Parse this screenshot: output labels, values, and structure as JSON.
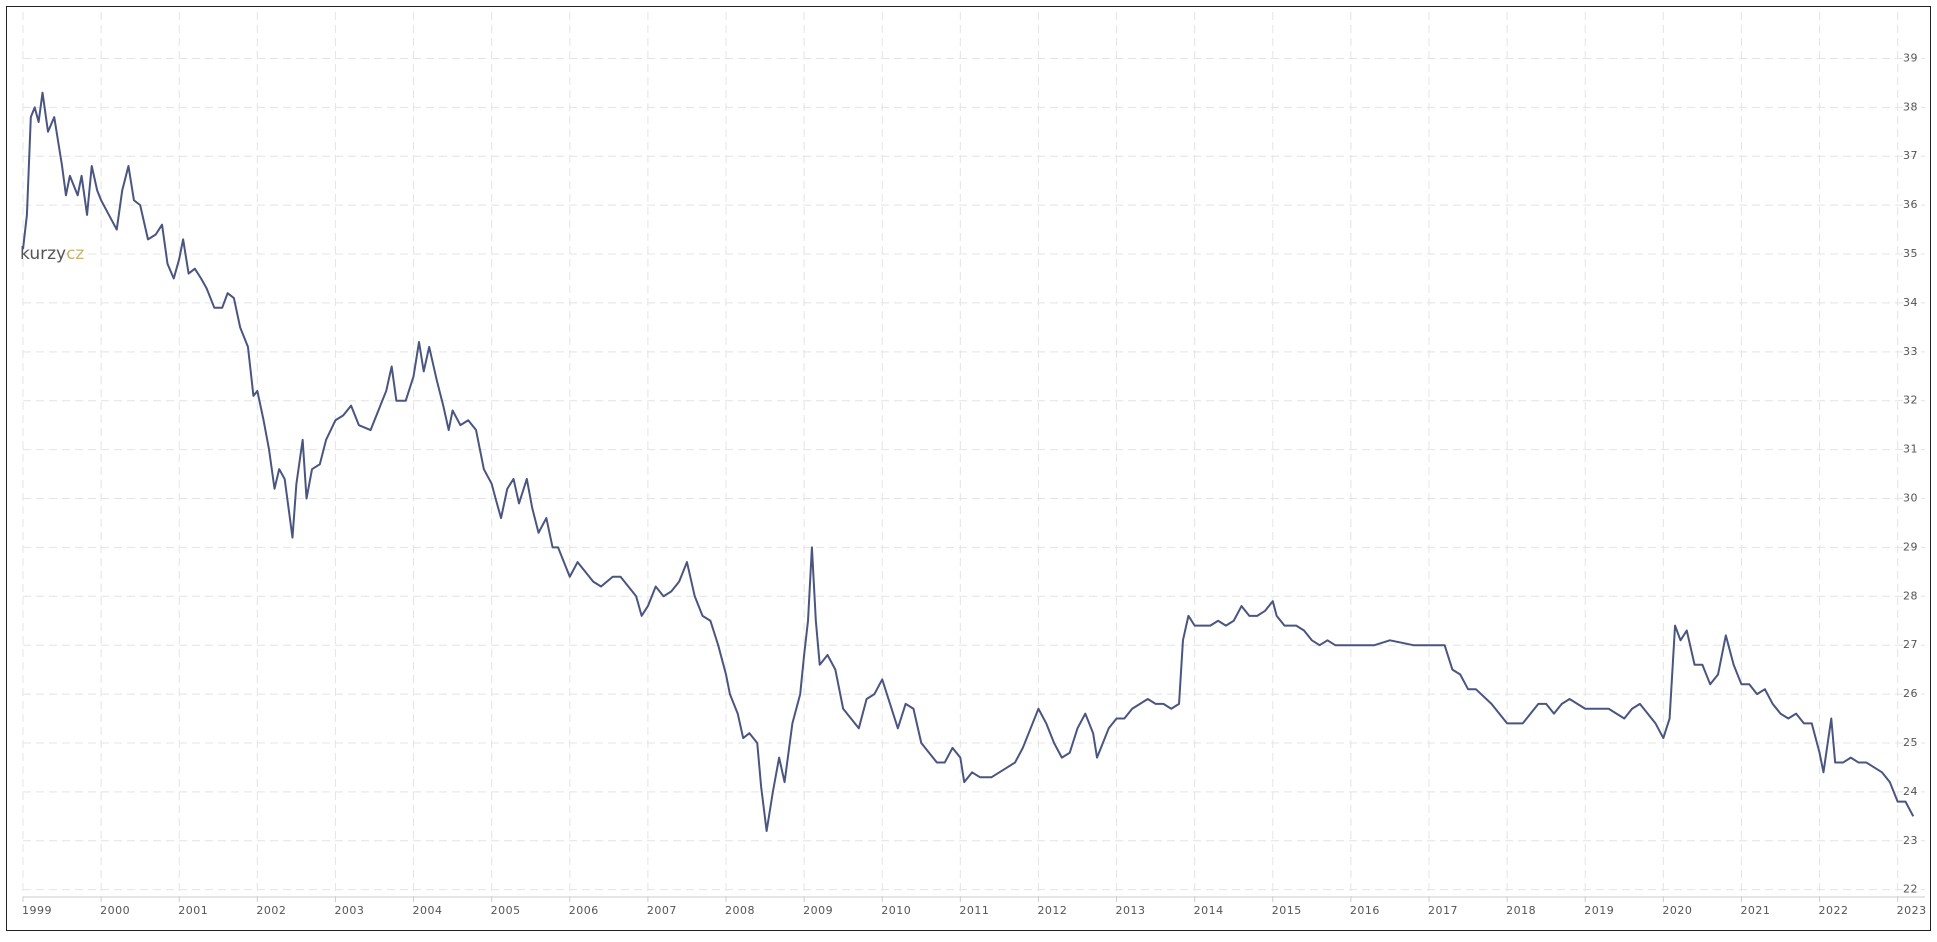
{
  "chart_data": {
    "type": "line",
    "color": "#4a5580",
    "grid": true,
    "watermark": "kurzy",
    "watermark_accent": "cz",
    "xlim": [
      1999,
      2023.35
    ],
    "ylim": [
      21.85,
      39.95
    ],
    "xticks": [
      1999,
      2000,
      2001,
      2002,
      2003,
      2004,
      2005,
      2006,
      2007,
      2008,
      2009,
      2010,
      2011,
      2012,
      2013,
      2014,
      2015,
      2016,
      2017,
      2018,
      2019,
      2020,
      2021,
      2022,
      2023
    ],
    "yticks": [
      22,
      23,
      24,
      25,
      26,
      27,
      28,
      29,
      30,
      31,
      32,
      33,
      34,
      35,
      36,
      37,
      38,
      39
    ],
    "x": [
      1999.0,
      1999.05,
      1999.1,
      1999.15,
      1999.2,
      1999.25,
      1999.32,
      1999.4,
      1999.5,
      1999.55,
      1999.6,
      1999.7,
      1999.75,
      1999.82,
      1999.88,
      1999.95,
      2000.0,
      2000.1,
      2000.2,
      2000.27,
      2000.35,
      2000.42,
      2000.5,
      2000.6,
      2000.7,
      2000.78,
      2000.85,
      2000.93,
      2001.0,
      2001.05,
      2001.12,
      2001.2,
      2001.28,
      2001.35,
      2001.45,
      2001.55,
      2001.62,
      2001.7,
      2001.78,
      2001.88,
      2001.95,
      2002.0,
      2002.08,
      2002.15,
      2002.22,
      2002.28,
      2002.35,
      2002.45,
      2002.5,
      2002.58,
      2002.63,
      2002.7,
      2002.8,
      2002.88,
      2003.0,
      2003.1,
      2003.2,
      2003.3,
      2003.45,
      2003.55,
      2003.65,
      2003.72,
      2003.78,
      2003.9,
      2004.0,
      2004.07,
      2004.13,
      2004.2,
      2004.3,
      2004.38,
      2004.45,
      2004.5,
      2004.6,
      2004.7,
      2004.8,
      2004.9,
      2005.0,
      2005.05,
      2005.12,
      2005.2,
      2005.28,
      2005.35,
      2005.45,
      2005.52,
      2005.6,
      2005.7,
      2005.78,
      2005.85,
      2005.95,
      2006.0,
      2006.1,
      2006.2,
      2006.3,
      2006.4,
      2006.55,
      2006.65,
      2006.75,
      2006.85,
      2006.92,
      2007.0,
      2007.1,
      2007.2,
      2007.3,
      2007.4,
      2007.5,
      2007.6,
      2007.7,
      2007.8,
      2007.9,
      2008.0,
      2008.05,
      2008.15,
      2008.22,
      2008.3,
      2008.4,
      2008.45,
      2008.52,
      2008.6,
      2008.68,
      2008.75,
      2008.85,
      2008.95,
      2009.0,
      2009.05,
      2009.1,
      2009.15,
      2009.2,
      2009.3,
      2009.4,
      2009.5,
      2009.6,
      2009.7,
      2009.8,
      2009.9,
      2010.0,
      2010.1,
      2010.2,
      2010.3,
      2010.4,
      2010.5,
      2010.6,
      2010.7,
      2010.8,
      2010.9,
      2011.0,
      2011.05,
      2011.15,
      2011.25,
      2011.4,
      2011.5,
      2011.6,
      2011.7,
      2011.8,
      2011.9,
      2012.0,
      2012.1,
      2012.2,
      2012.3,
      2012.4,
      2012.5,
      2012.6,
      2012.7,
      2012.75,
      2012.8,
      2012.9,
      2013.0,
      2013.1,
      2013.2,
      2013.3,
      2013.4,
      2013.5,
      2013.6,
      2013.7,
      2013.8,
      2013.85,
      2013.92,
      2014.0,
      2014.1,
      2014.2,
      2014.3,
      2014.4,
      2014.5,
      2014.6,
      2014.7,
      2014.8,
      2014.9,
      2015.0,
      2015.05,
      2015.15,
      2015.3,
      2015.4,
      2015.5,
      2015.6,
      2015.7,
      2015.8,
      2016.0,
      2016.3,
      2016.5,
      2016.8,
      2017.0,
      2017.2,
      2017.3,
      2017.4,
      2017.5,
      2017.6,
      2017.8,
      2017.9,
      2018.0,
      2018.1,
      2018.2,
      2018.3,
      2018.4,
      2018.5,
      2018.6,
      2018.7,
      2018.8,
      2018.9,
      2019.0,
      2019.1,
      2019.2,
      2019.3,
      2019.4,
      2019.5,
      2019.6,
      2019.7,
      2019.8,
      2019.9,
      2020.0,
      2020.08,
      2020.15,
      2020.22,
      2020.3,
      2020.4,
      2020.5,
      2020.6,
      2020.7,
      2020.8,
      2020.9,
      2021.0,
      2021.1,
      2021.2,
      2021.3,
      2021.4,
      2021.5,
      2021.6,
      2021.7,
      2021.8,
      2021.9,
      2022.0,
      2022.05,
      2022.15,
      2022.2,
      2022.3,
      2022.4,
      2022.5,
      2022.6,
      2022.7,
      2022.8,
      2022.9,
      2023.0,
      2023.1,
      2023.2
    ],
    "values": [
      35.1,
      35.8,
      37.8,
      38.0,
      37.7,
      38.3,
      37.5,
      37.8,
      36.8,
      36.2,
      36.6,
      36.2,
      36.6,
      35.8,
      36.8,
      36.3,
      36.1,
      35.8,
      35.5,
      36.3,
      36.8,
      36.1,
      36.0,
      35.3,
      35.4,
      35.6,
      34.8,
      34.5,
      34.9,
      35.3,
      34.6,
      34.7,
      34.5,
      34.3,
      33.9,
      33.9,
      34.2,
      34.1,
      33.5,
      33.1,
      32.1,
      32.2,
      31.6,
      31.0,
      30.2,
      30.6,
      30.4,
      29.2,
      30.3,
      31.2,
      30.0,
      30.6,
      30.7,
      31.2,
      31.6,
      31.7,
      31.9,
      31.5,
      31.4,
      31.8,
      32.2,
      32.7,
      32.0,
      32.0,
      32.5,
      33.2,
      32.6,
      33.1,
      32.4,
      31.9,
      31.4,
      31.8,
      31.5,
      31.6,
      31.4,
      30.6,
      30.3,
      30.0,
      29.6,
      30.2,
      30.4,
      29.9,
      30.4,
      29.8,
      29.3,
      29.6,
      29.0,
      29.0,
      28.6,
      28.4,
      28.7,
      28.5,
      28.3,
      28.2,
      28.4,
      28.4,
      28.2,
      28.0,
      27.6,
      27.8,
      28.2,
      28.0,
      28.1,
      28.3,
      28.7,
      28.0,
      27.6,
      27.5,
      27.0,
      26.4,
      26.0,
      25.6,
      25.1,
      25.2,
      25.0,
      24.1,
      23.2,
      24.0,
      24.7,
      24.2,
      25.4,
      26.0,
      26.8,
      27.5,
      29.0,
      27.5,
      26.6,
      26.8,
      26.5,
      25.7,
      25.5,
      25.3,
      25.9,
      26.0,
      26.3,
      25.8,
      25.3,
      25.8,
      25.7,
      25.0,
      24.8,
      24.6,
      24.6,
      24.9,
      24.7,
      24.2,
      24.4,
      24.3,
      24.3,
      24.4,
      24.5,
      24.6,
      24.9,
      25.3,
      25.7,
      25.4,
      25.0,
      24.7,
      24.8,
      25.3,
      25.6,
      25.2,
      24.7,
      24.9,
      25.3,
      25.5,
      25.5,
      25.7,
      25.8,
      25.9,
      25.8,
      25.8,
      25.7,
      25.8,
      27.1,
      27.6,
      27.4,
      27.4,
      27.4,
      27.5,
      27.4,
      27.5,
      27.8,
      27.6,
      27.6,
      27.7,
      27.9,
      27.6,
      27.4,
      27.4,
      27.3,
      27.1,
      27.0,
      27.1,
      27.0,
      27.0,
      27.0,
      27.1,
      27.0,
      27.0,
      27.0,
      26.5,
      26.4,
      26.1,
      26.1,
      25.8,
      25.6,
      25.4,
      25.4,
      25.4,
      25.6,
      25.8,
      25.8,
      25.6,
      25.8,
      25.9,
      25.8,
      25.7,
      25.7,
      25.7,
      25.7,
      25.6,
      25.5,
      25.7,
      25.8,
      25.6,
      25.4,
      25.1,
      25.5,
      27.4,
      27.1,
      27.3,
      26.6,
      26.6,
      26.2,
      26.4,
      27.2,
      26.6,
      26.2,
      26.2,
      26.0,
      26.1,
      25.8,
      25.6,
      25.5,
      25.6,
      25.4,
      25.4,
      24.8,
      24.4,
      25.5,
      24.6,
      24.6,
      24.7,
      24.6,
      24.6,
      24.5,
      24.4,
      24.2,
      23.8,
      23.8,
      23.5
    ]
  }
}
